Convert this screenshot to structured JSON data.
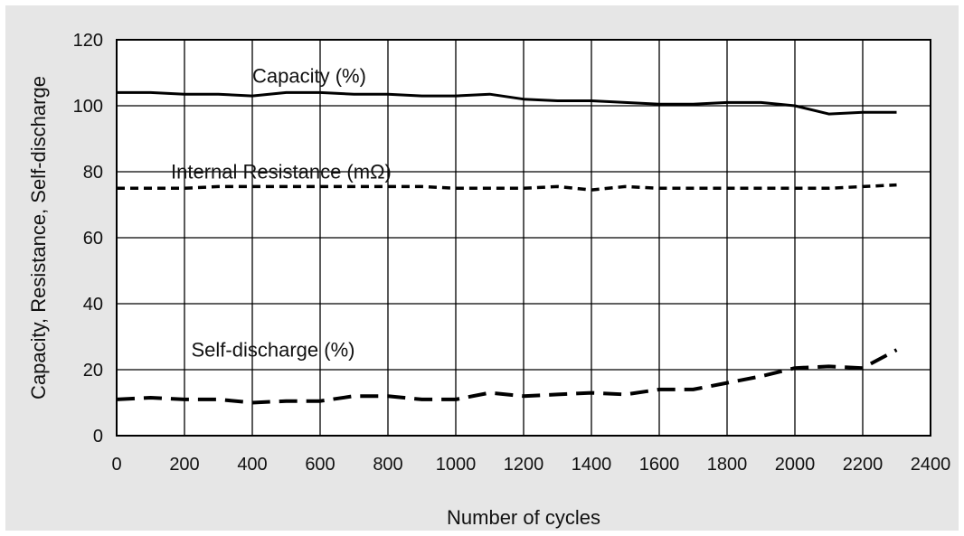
{
  "chart_data": {
    "type": "line",
    "xlabel": "Number of cycles",
    "ylabel": "Capacity, Resistance, Self-discharge",
    "xlim": [
      0,
      2400
    ],
    "ylim": [
      0,
      120
    ],
    "xticks": [
      "0",
      "200",
      "400",
      "600",
      "800",
      "1000",
      "1200",
      "1400",
      "1600",
      "1800",
      "2000",
      "2200",
      "2400"
    ],
    "yticks": [
      "0",
      "20",
      "40",
      "60",
      "80",
      "100",
      "120"
    ],
    "grid": true,
    "series": [
      {
        "name": "Capacity (%)",
        "style": "solid",
        "color": "#000000",
        "x": [
          0,
          100,
          200,
          300,
          400,
          500,
          600,
          700,
          800,
          900,
          1000,
          1100,
          1200,
          1300,
          1400,
          1500,
          1600,
          1700,
          1800,
          1900,
          2000,
          2100,
          2200,
          2300
        ],
        "y": [
          104,
          104,
          103.5,
          103.5,
          103,
          104,
          104,
          103.5,
          103.5,
          103,
          103,
          103.5,
          102,
          101.5,
          101.5,
          101,
          100.5,
          100.5,
          101,
          101,
          100,
          97.5,
          98,
          98
        ]
      },
      {
        "name": "Internal Resistance (mΩ)",
        "style": "dotted",
        "color": "#000000",
        "x": [
          0,
          100,
          200,
          300,
          400,
          500,
          600,
          700,
          800,
          900,
          1000,
          1100,
          1200,
          1300,
          1400,
          1500,
          1600,
          1700,
          1800,
          1900,
          2000,
          2100,
          2200,
          2300
        ],
        "y": [
          75,
          75,
          75,
          75.5,
          75.5,
          75.5,
          75.5,
          75.5,
          75.5,
          75.5,
          75,
          75,
          75,
          75.5,
          74.5,
          75.5,
          75,
          75,
          75,
          75,
          75,
          75,
          75.5,
          76
        ]
      },
      {
        "name": "Self-discharge (%)",
        "style": "dashed",
        "color": "#000000",
        "x": [
          0,
          100,
          200,
          300,
          400,
          500,
          600,
          700,
          800,
          900,
          1000,
          1100,
          1200,
          1300,
          1400,
          1500,
          1600,
          1700,
          1800,
          1900,
          2000,
          2100,
          2200,
          2300
        ],
        "y": [
          11,
          11.5,
          11,
          11,
          10,
          10.5,
          10.5,
          12,
          12,
          11,
          11,
          13,
          12,
          12.5,
          13,
          12.5,
          14,
          14,
          16,
          18,
          20.5,
          21,
          20.5,
          26
        ]
      }
    ],
    "annotations": [
      {
        "text": "Capacity (%)",
        "x": 400,
        "y": 107
      },
      {
        "text": "Internal Resistance (mΩ)",
        "x": 160,
        "y": 78
      },
      {
        "text": "Self-discharge (%)",
        "x": 220,
        "y": 24
      }
    ]
  }
}
